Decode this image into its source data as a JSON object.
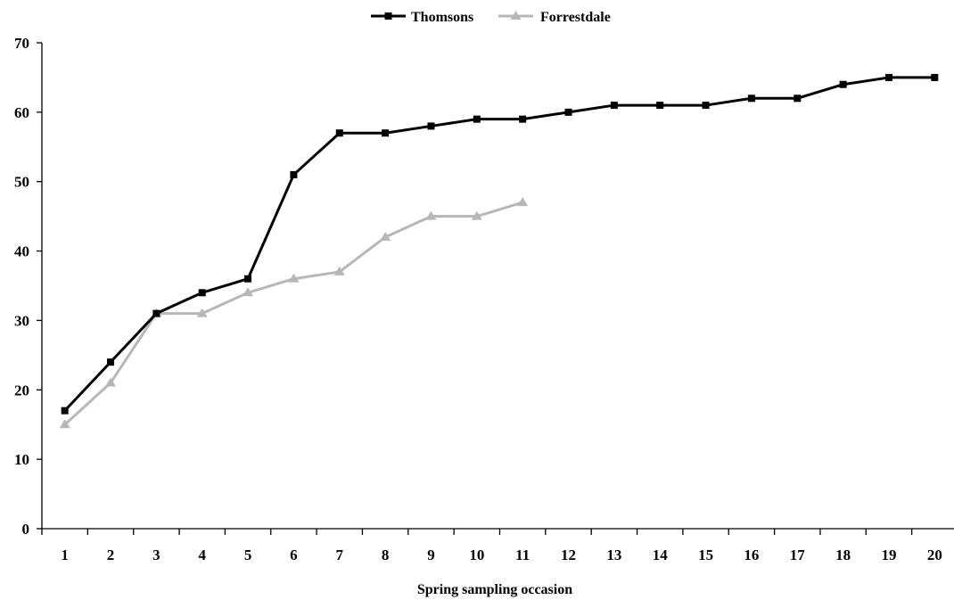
{
  "chart_data": {
    "type": "line",
    "title": "",
    "xlabel": "Spring sampling occasion",
    "ylabel": "",
    "categories": [
      "1",
      "2",
      "3",
      "4",
      "5",
      "6",
      "7",
      "8",
      "9",
      "10",
      "11",
      "12",
      "13",
      "14",
      "15",
      "16",
      "17",
      "18",
      "19",
      "20"
    ],
    "ylim": [
      0,
      70
    ],
    "yticks": [
      0,
      10,
      20,
      30,
      40,
      50,
      60,
      70
    ],
    "grid": false,
    "legend_position": "top-center",
    "series": [
      {
        "name": "Thomsons",
        "color": "#000000",
        "marker": "square",
        "values": [
          17,
          24,
          31,
          34,
          36,
          51,
          57,
          57,
          58,
          59,
          59,
          60,
          61,
          61,
          61,
          62,
          62,
          64,
          65,
          65
        ]
      },
      {
        "name": "Forrestdale",
        "color": "#b7b7b7",
        "marker": "triangle",
        "values": [
          15,
          21,
          31,
          31,
          34,
          36,
          37,
          42,
          45,
          45,
          47,
          null,
          null,
          null,
          null,
          null,
          null,
          null,
          null,
          null
        ]
      }
    ]
  }
}
